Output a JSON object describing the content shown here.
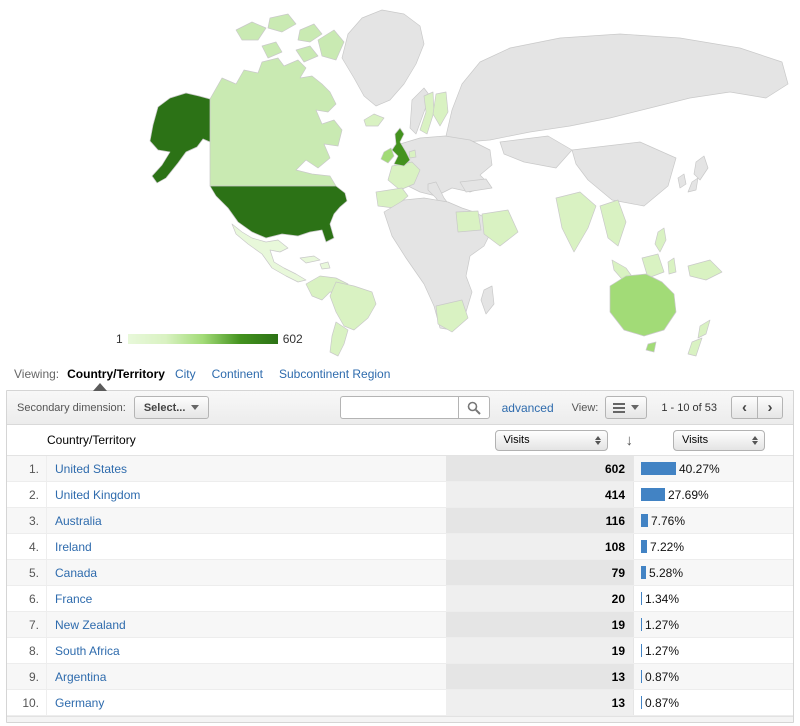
{
  "map": {
    "legend": {
      "min": "1",
      "max": "602"
    },
    "palette": {
      "dark": "#2c7216",
      "mid_dark": "#43921e",
      "mid": "#a2db77",
      "light_mid": "#c9eab2",
      "light": "#d9f2c2",
      "very_light": "#e8f8da",
      "none": "#e4e4e4"
    },
    "regions": {
      "alaska": "dark",
      "united-states": "dark",
      "canada": "light_mid",
      "canada-arctic-1": "light_mid",
      "canada-arctic-2": "light_mid",
      "canada-arctic-3": "light_mid",
      "canada-arctic-4": "light_mid",
      "canada-arctic-5": "light_mid",
      "baffin-island": "light_mid",
      "greenland": "none",
      "mexico": "very_light",
      "cuba": "very_light",
      "hispaniola": "very_light",
      "colombia-venezuela": "light",
      "brazil": "light",
      "argentina": "light",
      "iceland": "light",
      "united-kingdom": "mid_dark",
      "ireland": "mid",
      "norway": "none",
      "sweden": "light",
      "finland": "light",
      "europe-mainland": "none",
      "france": "light",
      "spain": "light",
      "netherlands": "light",
      "italy": "none",
      "africa": "none",
      "egypt": "light",
      "south-africa": "light",
      "madagascar": "none",
      "turkey": "none",
      "saudi-arabia": "light",
      "russia": "none",
      "central-asia": "none",
      "china": "none",
      "japan-1": "none",
      "japan-2": "none",
      "korea": "none",
      "india": "light",
      "se-asia": "light",
      "philippines": "light",
      "sumatra": "light",
      "borneo": "light",
      "sulawesi": "light",
      "java": "light",
      "new-guinea": "light",
      "australia": "mid",
      "tasmania": "mid",
      "new-zealand-north": "light",
      "new-zealand-south": "light"
    }
  },
  "viewing": {
    "label": "Viewing:",
    "selected": "Country/Territory",
    "tabs": [
      "City",
      "Continent",
      "Subcontinent Region"
    ]
  },
  "toolbar": {
    "secondary_dimension_label": "Secondary dimension:",
    "select_button_label": "Select...",
    "search_value": "",
    "advanced_label": "advanced",
    "view_label": "View:",
    "pagination": "1 - 10 of 53",
    "prev_label": "‹",
    "next_label": "›"
  },
  "table": {
    "primary_header": "Country/Territory",
    "metric_select_value": "Visits",
    "comparison_select_value": "Visits",
    "sort_arrow": "↓",
    "bar_color": "#4283c4",
    "rows": [
      {
        "rank": "1.",
        "country": "United States",
        "visits": "602",
        "pct": "40.27%",
        "pct_value": 40.27
      },
      {
        "rank": "2.",
        "country": "United Kingdom",
        "visits": "414",
        "pct": "27.69%",
        "pct_value": 27.69
      },
      {
        "rank": "3.",
        "country": "Australia",
        "visits": "116",
        "pct": "7.76%",
        "pct_value": 7.76
      },
      {
        "rank": "4.",
        "country": "Ireland",
        "visits": "108",
        "pct": "7.22%",
        "pct_value": 7.22
      },
      {
        "rank": "5.",
        "country": "Canada",
        "visits": "79",
        "pct": "5.28%",
        "pct_value": 5.28
      },
      {
        "rank": "6.",
        "country": "France",
        "visits": "20",
        "pct": "1.34%",
        "pct_value": 1.34
      },
      {
        "rank": "7.",
        "country": "New Zealand",
        "visits": "19",
        "pct": "1.27%",
        "pct_value": 1.27
      },
      {
        "rank": "8.",
        "country": "South Africa",
        "visits": "19",
        "pct": "1.27%",
        "pct_value": 1.27
      },
      {
        "rank": "9.",
        "country": "Argentina",
        "visits": "13",
        "pct": "0.87%",
        "pct_value": 0.87
      },
      {
        "rank": "10.",
        "country": "Germany",
        "visits": "13",
        "pct": "0.87%",
        "pct_value": 0.87
      }
    ]
  }
}
